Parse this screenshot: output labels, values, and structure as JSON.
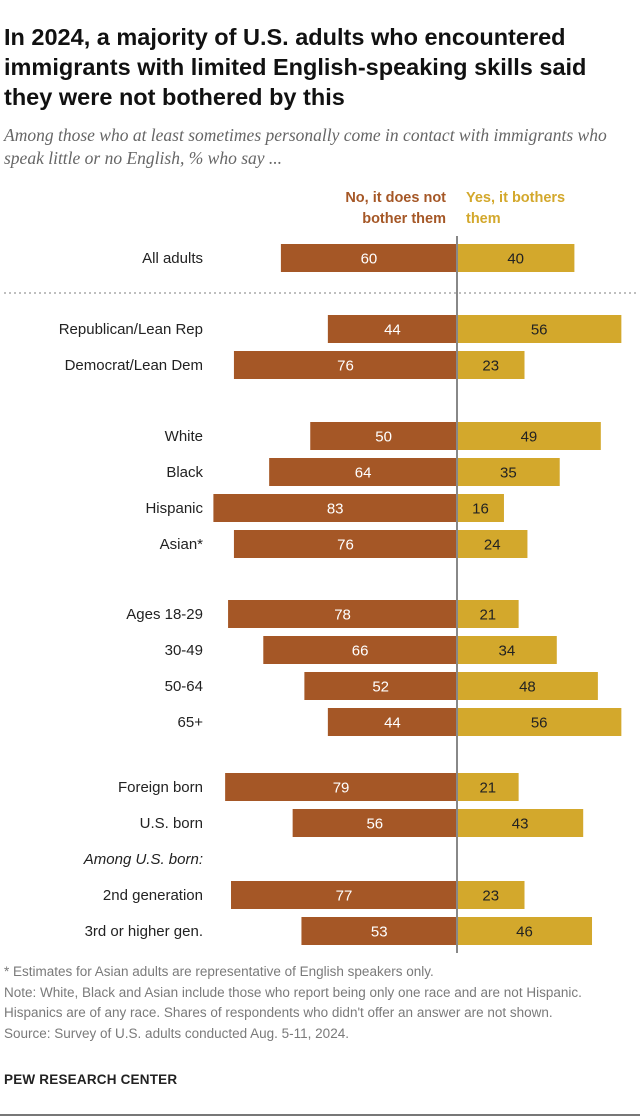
{
  "header": {
    "title": "In 2024, a majority of U.S. adults who encountered immigrants with limited English-speaking skills said they were not bothered by this",
    "subtitle": "Among those who at least sometimes personally come in contact with immigrants who speak little or no English, % who say ..."
  },
  "legend": {
    "no_line1": "No, it does not",
    "no_line2": "bother them",
    "yes_line1": "Yes, it bothers",
    "yes_line2": "them"
  },
  "colors": {
    "no": "#a55726",
    "yes": "#d3a82c",
    "center_line": "#888888",
    "divider": "#999999"
  },
  "chart_data": {
    "type": "bar",
    "orientation": "diverging-horizontal",
    "title": "In 2024, a majority of U.S. adults who encountered immigrants with limited English-speaking skills said they were not bothered by this",
    "series_names": [
      "No, it does not bother them",
      "Yes, it bothers them"
    ],
    "groups": [
      {
        "subheading": null,
        "rows": [
          {
            "label": "All adults",
            "no": 60,
            "yes": 40
          }
        ]
      },
      {
        "subheading": null,
        "rows": [
          {
            "label": "Republican/Lean Rep",
            "no": 44,
            "yes": 56
          },
          {
            "label": "Democrat/Lean Dem",
            "no": 76,
            "yes": 23
          }
        ]
      },
      {
        "subheading": null,
        "rows": [
          {
            "label": "White",
            "no": 50,
            "yes": 49
          },
          {
            "label": "Black",
            "no": 64,
            "yes": 35
          },
          {
            "label": "Hispanic",
            "no": 83,
            "yes": 16
          },
          {
            "label": "Asian*",
            "no": 76,
            "yes": 24
          }
        ]
      },
      {
        "subheading": null,
        "rows": [
          {
            "label": "Ages 18-29",
            "no": 78,
            "yes": 21
          },
          {
            "label": "30-49",
            "no": 66,
            "yes": 34
          },
          {
            "label": "50-64",
            "no": 52,
            "yes": 48
          },
          {
            "label": "65+",
            "no": 44,
            "yes": 56
          }
        ]
      },
      {
        "subheading": null,
        "rows": [
          {
            "label": "Foreign born",
            "no": 79,
            "yes": 21
          },
          {
            "label": "U.S. born",
            "no": 56,
            "yes": 43
          }
        ]
      },
      {
        "subheading": "Among U.S. born:",
        "rows": [
          {
            "label": "2nd generation",
            "no": 77,
            "yes": 23
          },
          {
            "label": "3rd or higher gen.",
            "no": 53,
            "yes": 46
          }
        ]
      }
    ]
  },
  "footnotes": {
    "asterisk": "* Estimates for Asian adults are representative of English speakers only.",
    "note": "Note: White, Black and Asian include those who report being only one race and are not Hispanic. Hispanics are of any race. Shares of respondents who didn't offer an answer are not shown.",
    "source": "Source: Survey of U.S. adults conducted Aug. 5-11, 2024."
  },
  "brand": "PEW RESEARCH CENTER"
}
